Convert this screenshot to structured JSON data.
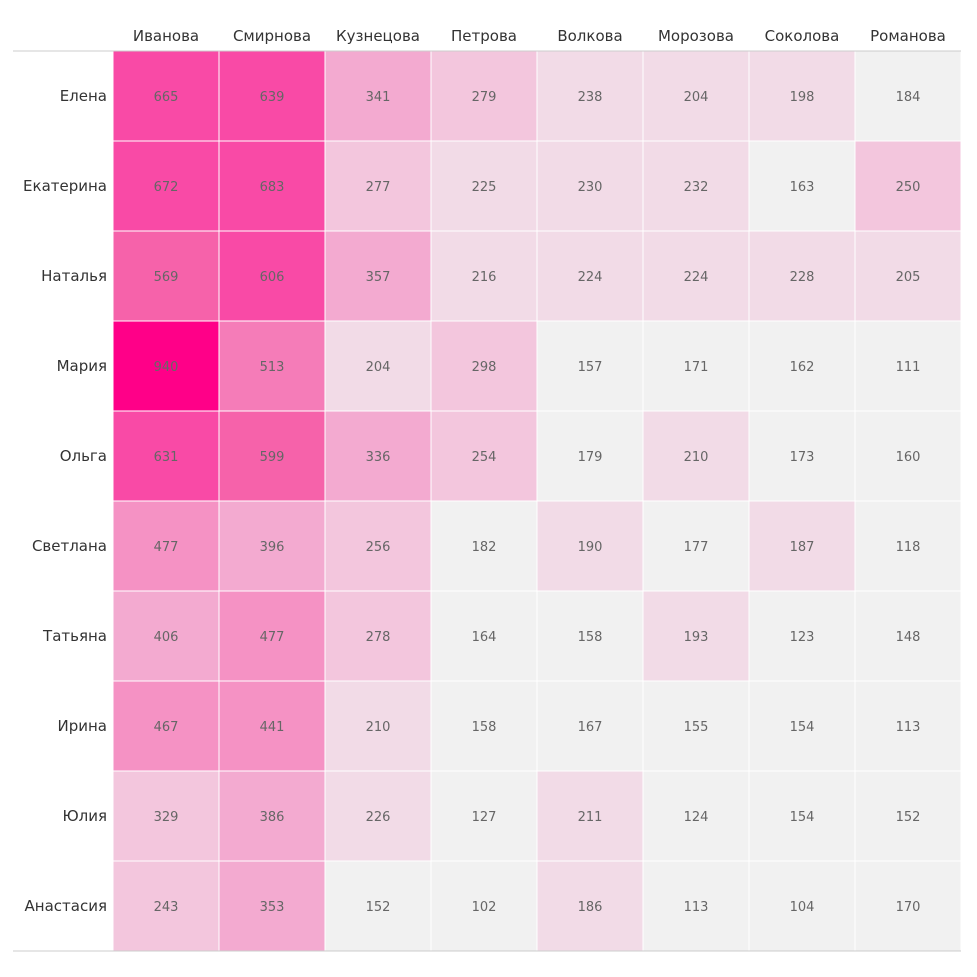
{
  "chart_data": {
    "type": "heatmap",
    "title": "",
    "xlabel": "",
    "ylabel": "",
    "columns": [
      "Иванова",
      "Смирнова",
      "Кузнецова",
      "Петрова",
      "Волкова",
      "Морозова",
      "Соколова",
      "Романова"
    ],
    "rows": [
      "Елена",
      "Екатерина",
      "Наталья",
      "Мария",
      "Ольга",
      "Светлана",
      "Татьяна",
      "Ирина",
      "Юлия",
      "Анастасия"
    ],
    "values": [
      [
        665,
        639,
        341,
        279,
        238,
        204,
        198,
        184
      ],
      [
        672,
        683,
        277,
        225,
        230,
        232,
        163,
        250
      ],
      [
        569,
        606,
        357,
        216,
        224,
        224,
        228,
        205
      ],
      [
        940,
        513,
        204,
        298,
        157,
        171,
        162,
        111
      ],
      [
        631,
        599,
        336,
        254,
        179,
        210,
        173,
        160
      ],
      [
        477,
        396,
        256,
        182,
        190,
        177,
        187,
        118
      ],
      [
        406,
        477,
        278,
        164,
        158,
        193,
        123,
        148
      ],
      [
        467,
        441,
        210,
        158,
        167,
        155,
        154,
        113
      ],
      [
        329,
        386,
        226,
        127,
        211,
        124,
        154,
        152
      ],
      [
        243,
        353,
        152,
        102,
        186,
        113,
        104,
        170
      ]
    ],
    "color_scale": [
      {
        "min": 900,
        "color": "#ff0088"
      },
      {
        "min": 600,
        "color": "#f94aa6"
      },
      {
        "min": 550,
        "color": "#f662aa"
      },
      {
        "min": 500,
        "color": "#f57cb8"
      },
      {
        "min": 430,
        "color": "#f592c4"
      },
      {
        "min": 330,
        "color": "#f3aad0"
      },
      {
        "min": 240,
        "color": "#f3c6dd"
      },
      {
        "min": 185,
        "color": "#f2dbe7"
      },
      {
        "min": 0,
        "color": "#f1f1f1"
      }
    ],
    "grid_line_color": "#ffffff",
    "axis_line_color": "#cccccc"
  }
}
